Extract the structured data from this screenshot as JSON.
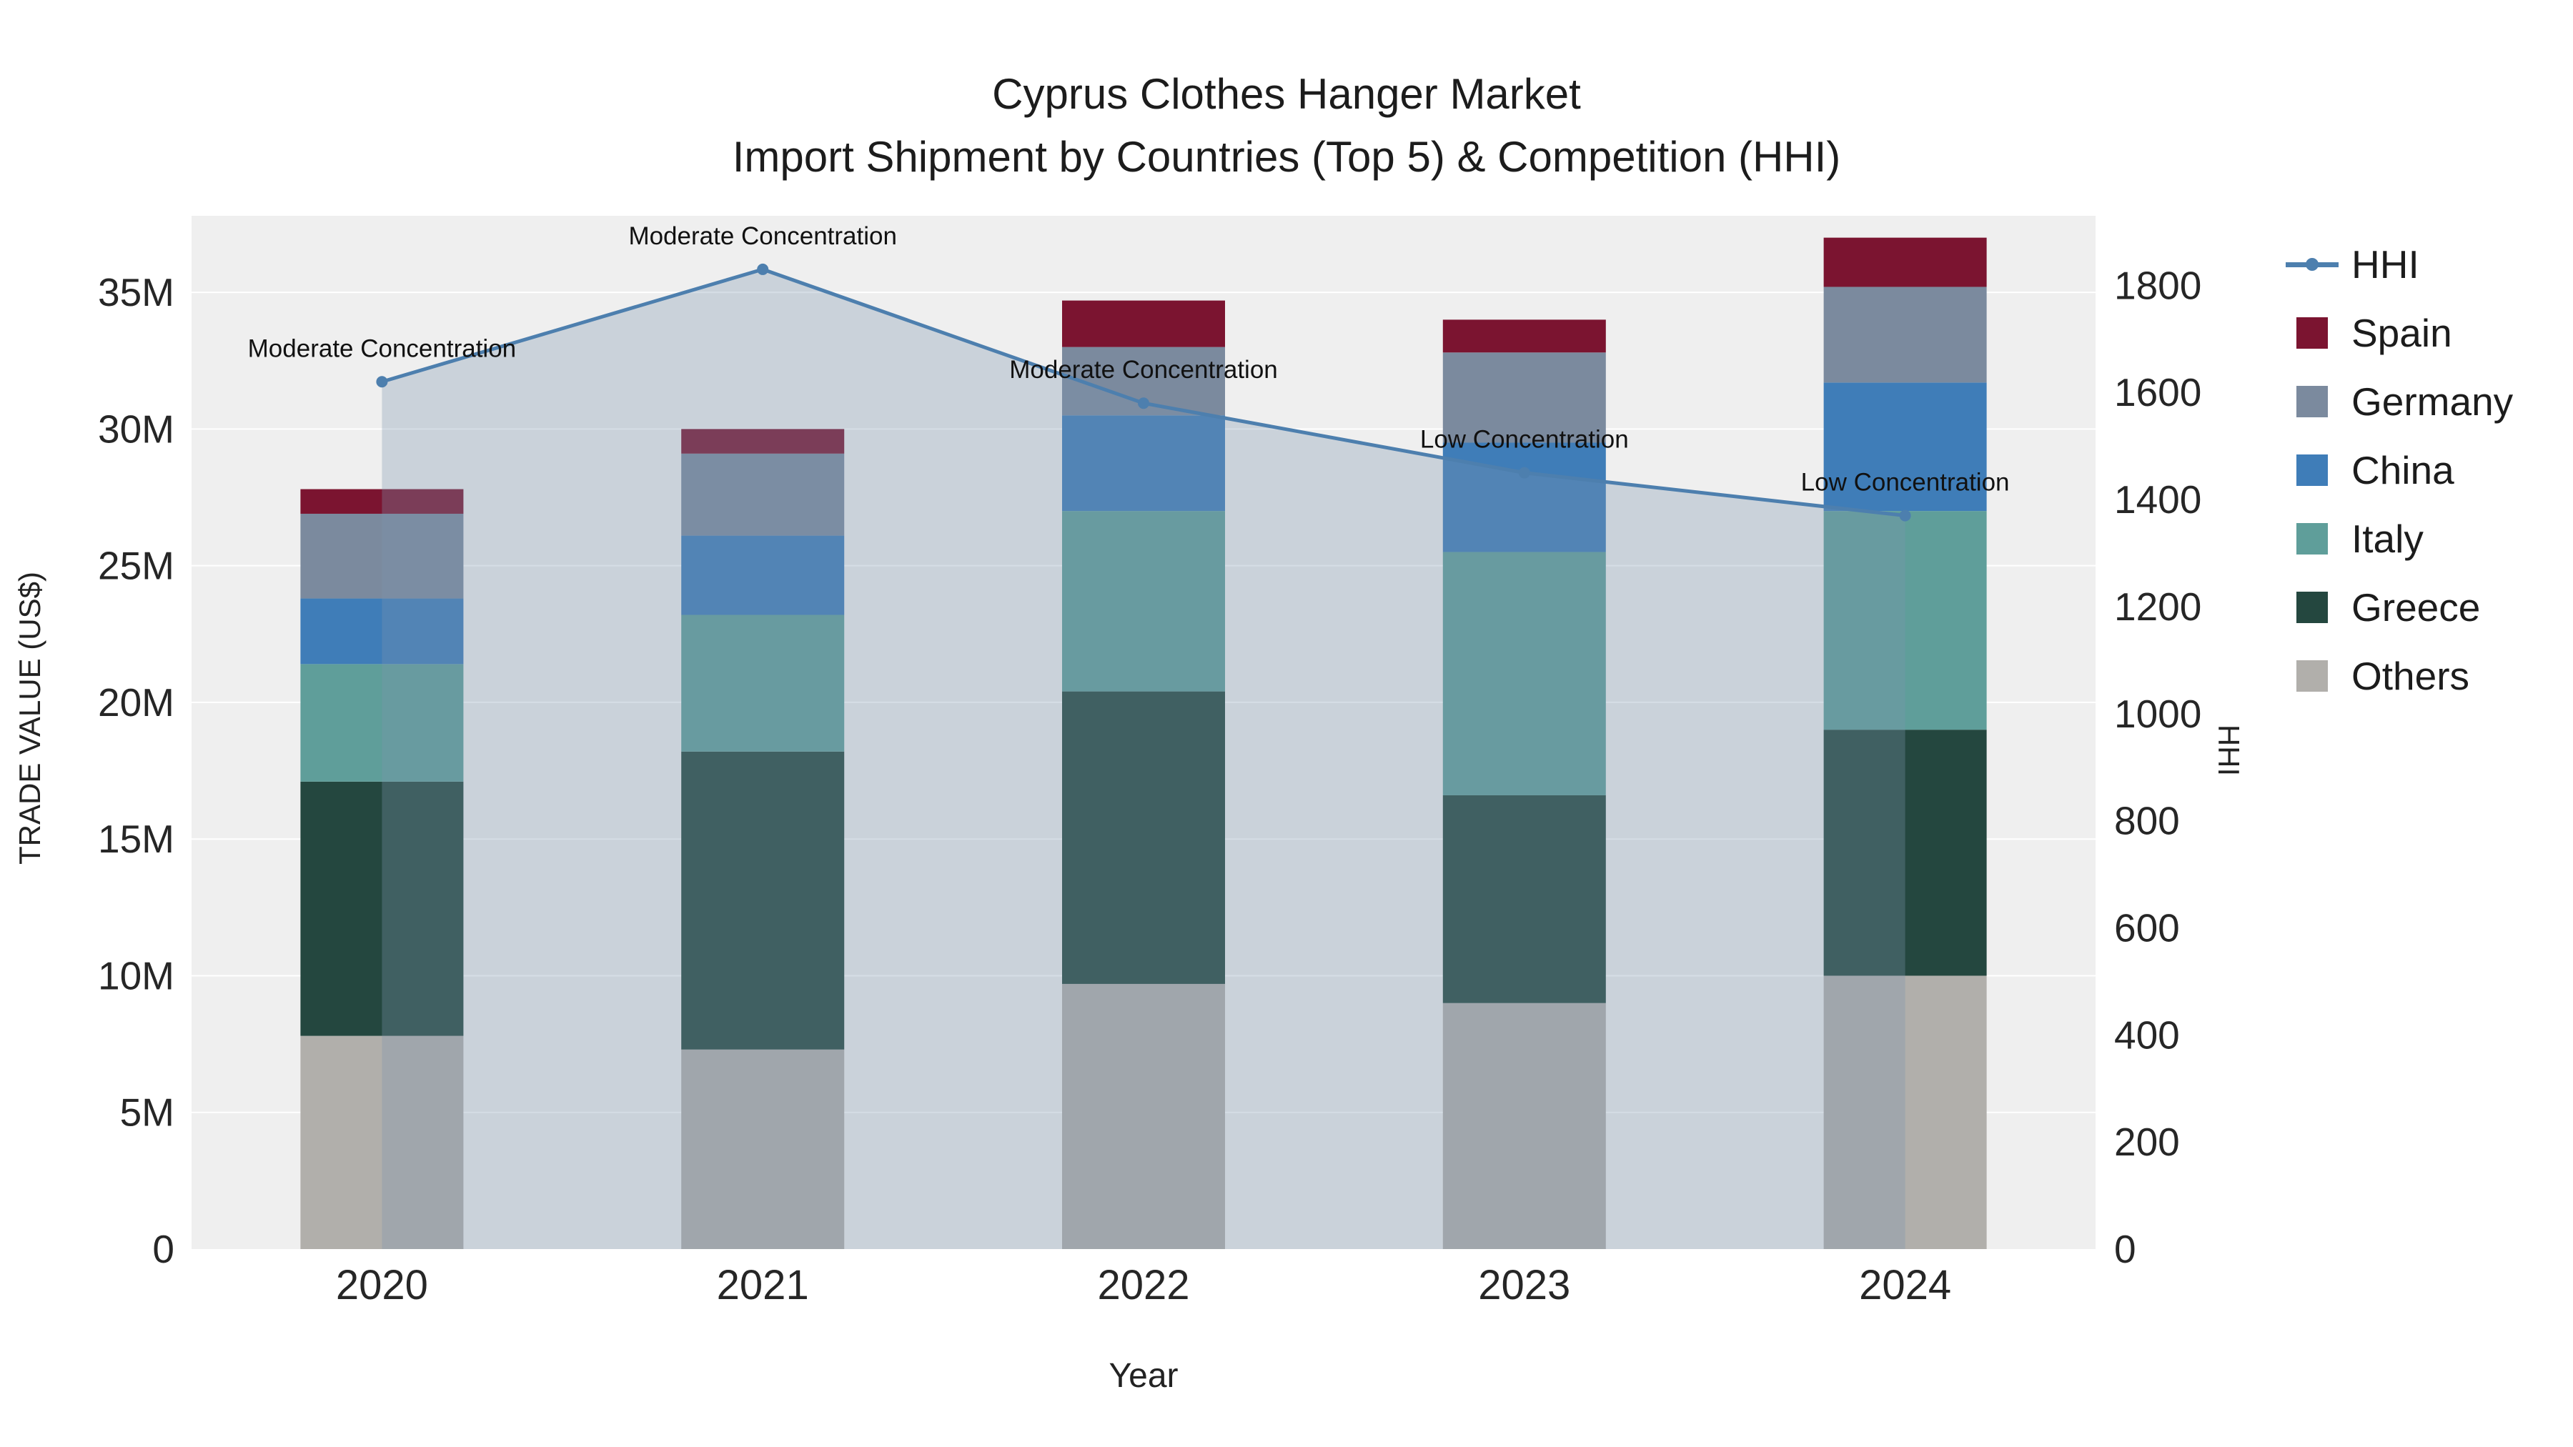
{
  "chart_data": {
    "type": "bar",
    "title": "Cyprus Clothes Hanger Market",
    "subtitle": "Import Shipment by Countries (Top 5) & Competition (HHI)",
    "xlabel": "Year",
    "ylabel": "TRADE VALUE (US$)",
    "y2label": "HHI",
    "categories": [
      "2020",
      "2021",
      "2022",
      "2023",
      "2024"
    ],
    "values_unit": "millions US$",
    "series": [
      {
        "name": "Others",
        "color": "#b1afab",
        "values": [
          7.8,
          7.3,
          9.7,
          9.0,
          10.0
        ]
      },
      {
        "name": "Greece",
        "color": "#24473f",
        "values": [
          9.3,
          10.9,
          10.7,
          7.6,
          9.0
        ]
      },
      {
        "name": "Italy",
        "color": "#5f9e9a",
        "values": [
          4.3,
          5.0,
          6.6,
          8.9,
          8.0
        ]
      },
      {
        "name": "China",
        "color": "#3f7db8",
        "values": [
          2.4,
          2.9,
          3.5,
          4.0,
          4.7
        ]
      },
      {
        "name": "Germany",
        "color": "#7b8a9e",
        "values": [
          3.1,
          3.0,
          2.5,
          3.3,
          3.5
        ]
      },
      {
        "name": "Spain",
        "color": "#7b1430",
        "values": [
          0.9,
          0.9,
          1.7,
          1.2,
          1.8
        ]
      }
    ],
    "bar_totals": [
      27.8,
      30.0,
      34.7,
      34.0,
      37.0
    ],
    "line_series": {
      "name": "HHI",
      "color": "#4d7fae",
      "area_fill": "rgba(125,150,175,0.32)",
      "values": [
        1620,
        1830,
        1580,
        1450,
        1370
      ]
    },
    "annotations": [
      {
        "text": "Moderate Concentration",
        "x": 0
      },
      {
        "text": "Moderate Concentration",
        "x": 1
      },
      {
        "text": "Moderate Concentration",
        "x": 2
      },
      {
        "text": "Low Concentration",
        "x": 3
      },
      {
        "text": "Low Concentration",
        "x": 4
      }
    ],
    "y_ticks": [
      {
        "v": 0,
        "label": "0"
      },
      {
        "v": 5,
        "label": "5M"
      },
      {
        "v": 10,
        "label": "10M"
      },
      {
        "v": 15,
        "label": "15M"
      },
      {
        "v": 20,
        "label": "20M"
      },
      {
        "v": 25,
        "label": "25M"
      },
      {
        "v": 30,
        "label": "30M"
      },
      {
        "v": 35,
        "label": "35M"
      }
    ],
    "y2_ticks": [
      {
        "v": 0,
        "label": "0"
      },
      {
        "v": 200,
        "label": "200"
      },
      {
        "v": 400,
        "label": "400"
      },
      {
        "v": 600,
        "label": "600"
      },
      {
        "v": 800,
        "label": "800"
      },
      {
        "v": 1000,
        "label": "1000"
      },
      {
        "v": 1200,
        "label": "1200"
      },
      {
        "v": 1400,
        "label": "1400"
      },
      {
        "v": 1600,
        "label": "1600"
      },
      {
        "v": 1800,
        "label": "1800"
      }
    ],
    "ylim": [
      0,
      37.8
    ],
    "y2lim": [
      0,
      1930
    ],
    "grid": true,
    "legend_position": "right",
    "plot_bg": "#efefef",
    "legend": [
      {
        "label": "HHI",
        "type": "line",
        "color": "#4d7fae"
      },
      {
        "label": "Spain",
        "type": "square",
        "color": "#7b1430"
      },
      {
        "label": "Germany",
        "type": "square",
        "color": "#7b8a9e"
      },
      {
        "label": "China",
        "type": "square",
        "color": "#3f7db8"
      },
      {
        "label": "Italy",
        "type": "square",
        "color": "#5f9e9a"
      },
      {
        "label": "Greece",
        "type": "square",
        "color": "#24473f"
      },
      {
        "label": "Others",
        "type": "square",
        "color": "#b1afab"
      }
    ]
  }
}
